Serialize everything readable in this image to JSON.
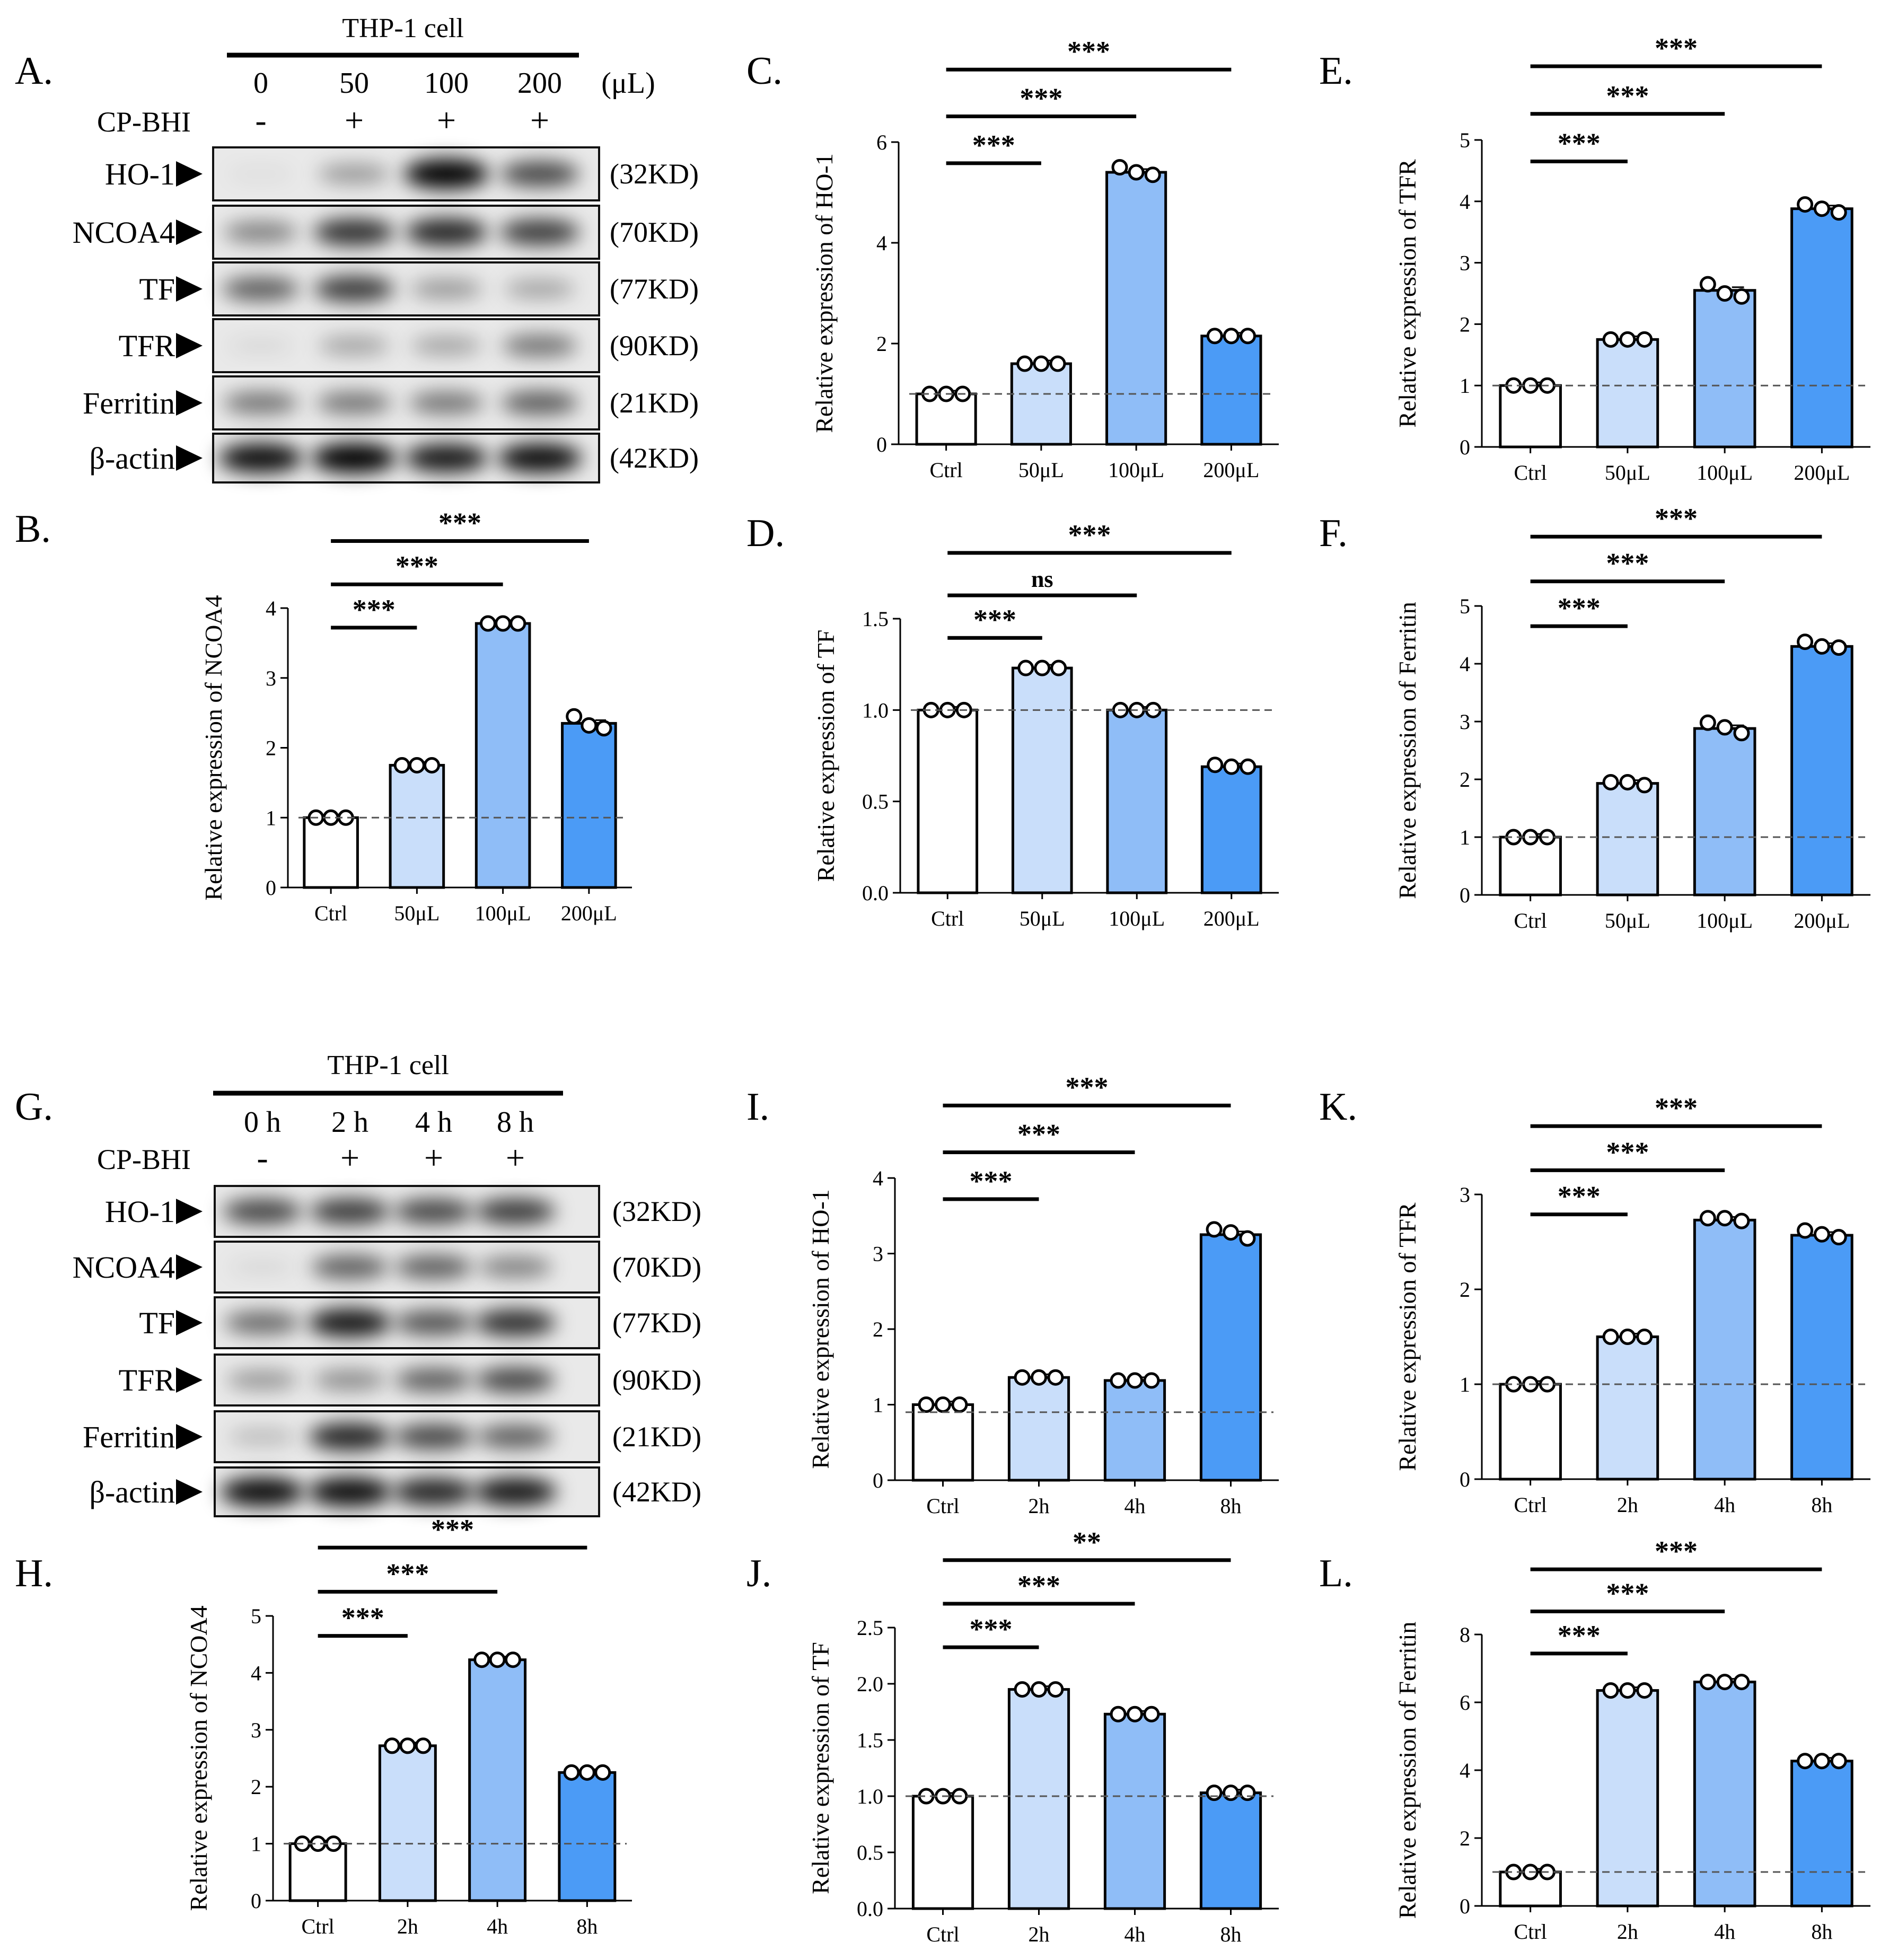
{
  "colors": {
    "ctrl": "#ffffff",
    "low": "#c9defa",
    "mid": "#8fbdf7",
    "high": "#4b9bf6",
    "axis": "#000000",
    "dashed": "#555555"
  },
  "blots": [
    {
      "panel_label": "A.",
      "title": "THP-1 cell",
      "conditions": [
        "0",
        "50",
        "100",
        "200"
      ],
      "unit": "(μL)",
      "treatment_label": "CP-BHI",
      "treatment_signs": [
        "-",
        "+",
        "+",
        "+"
      ],
      "rows": [
        {
          "label": "HO-1",
          "weight": "(32KD)"
        },
        {
          "label": "NCOA4",
          "weight": "(70KD)"
        },
        {
          "label": "TF",
          "weight": "(77KD)"
        },
        {
          "label": "TFR",
          "weight": "(90KD)"
        },
        {
          "label": "Ferritin",
          "weight": "(21KD)"
        },
        {
          "label": "β-actin",
          "weight": "(42KD)"
        }
      ],
      "intensity": [
        [
          0.05,
          0.35,
          1.0,
          0.7
        ],
        [
          0.45,
          0.8,
          0.85,
          0.75
        ],
        [
          0.6,
          0.75,
          0.35,
          0.3
        ],
        [
          0.08,
          0.3,
          0.3,
          0.5
        ],
        [
          0.5,
          0.5,
          0.5,
          0.6
        ],
        [
          0.95,
          1.0,
          0.9,
          0.95
        ]
      ]
    },
    {
      "panel_label": "G.",
      "title": "THP-1 cell",
      "conditions": [
        "0 h",
        "2 h",
        "4 h",
        "8 h"
      ],
      "unit": "",
      "treatment_label": "CP-BHI",
      "treatment_signs": [
        "-",
        "+",
        "+",
        "+"
      ],
      "rows": [
        {
          "label": "HO-1",
          "weight": "(32KD)"
        },
        {
          "label": "NCOA4",
          "weight": "(70KD)"
        },
        {
          "label": "TF",
          "weight": "(77KD)"
        },
        {
          "label": "TFR",
          "weight": "(90KD)"
        },
        {
          "label": "Ferritin",
          "weight": "(21KD)"
        },
        {
          "label": "β-actin",
          "weight": "(42KD)"
        }
      ],
      "intensity": [
        [
          0.7,
          0.75,
          0.7,
          0.75
        ],
        [
          0.08,
          0.6,
          0.6,
          0.45
        ],
        [
          0.55,
          0.9,
          0.65,
          0.8
        ],
        [
          0.35,
          0.4,
          0.6,
          0.7
        ],
        [
          0.2,
          0.85,
          0.7,
          0.6
        ],
        [
          0.95,
          0.95,
          0.85,
          0.9
        ]
      ]
    }
  ],
  "chart_data": [
    {
      "panel_label": "B.",
      "type": "bar",
      "ylabel": "Relative expression of NCOA4",
      "categories": [
        "Ctrl",
        "50μL",
        "100μL",
        "200μL"
      ],
      "values": [
        1.0,
        1.75,
        3.78,
        2.35
      ],
      "points": [
        [
          1,
          1,
          1
        ],
        [
          1.75,
          1.75,
          1.75
        ],
        [
          3.78,
          3.78,
          3.78
        ],
        [
          2.45,
          2.32,
          2.28
        ]
      ],
      "ylim": [
        0,
        4
      ],
      "yticks": [
        "0",
        "1",
        "2",
        "3",
        "4"
      ],
      "reference": 1.0,
      "sig": [
        {
          "to": 1,
          "label": "***"
        },
        {
          "to": 2,
          "label": "***"
        },
        {
          "to": 3,
          "label": "***"
        }
      ]
    },
    {
      "panel_label": "C.",
      "type": "bar",
      "ylabel": "Relative expression of HO-1",
      "categories": [
        "Ctrl",
        "50μL",
        "100μL",
        "200μL"
      ],
      "values": [
        1.0,
        1.6,
        5.4,
        2.15
      ],
      "points": [
        [
          1,
          1,
          1
        ],
        [
          1.6,
          1.6,
          1.6
        ],
        [
          5.5,
          5.4,
          5.35
        ],
        [
          2.15,
          2.15,
          2.15
        ]
      ],
      "ylim": [
        0,
        6
      ],
      "yticks": [
        "0",
        "2",
        "4",
        "6"
      ],
      "reference": 1.0,
      "sig": [
        {
          "to": 1,
          "label": "***"
        },
        {
          "to": 2,
          "label": "***"
        },
        {
          "to": 3,
          "label": "***"
        }
      ]
    },
    {
      "panel_label": "D.",
      "type": "bar",
      "ylabel": "Relative expression of TF",
      "categories": [
        "Ctrl",
        "50μL",
        "100μL",
        "200μL"
      ],
      "values": [
        1.0,
        1.23,
        1.0,
        0.69
      ],
      "points": [
        [
          1,
          1,
          1
        ],
        [
          1.23,
          1.23,
          1.23
        ],
        [
          1.0,
          1.0,
          1.0
        ],
        [
          0.7,
          0.69,
          0.69
        ]
      ],
      "ylim": [
        0,
        1.5
      ],
      "yticks": [
        "0.0",
        "0.5",
        "1.0",
        "1.5"
      ],
      "reference": 1.0,
      "sig": [
        {
          "to": 1,
          "label": "***"
        },
        {
          "to": 2,
          "label": "ns"
        },
        {
          "to": 3,
          "label": "***"
        }
      ]
    },
    {
      "panel_label": "E.",
      "type": "bar",
      "ylabel": "Relative expression of TFR",
      "categories": [
        "Ctrl",
        "50μL",
        "100μL",
        "200μL"
      ],
      "values": [
        1.0,
        1.75,
        2.55,
        3.88
      ],
      "points": [
        [
          1,
          1,
          1
        ],
        [
          1.75,
          1.75,
          1.75
        ],
        [
          2.65,
          2.5,
          2.45
        ],
        [
          3.95,
          3.88,
          3.82
        ]
      ],
      "ylim": [
        0,
        5
      ],
      "yticks": [
        "0",
        "1",
        "2",
        "3",
        "4",
        "5"
      ],
      "reference": 1.0,
      "sig": [
        {
          "to": 1,
          "label": "***"
        },
        {
          "to": 2,
          "label": "***"
        },
        {
          "to": 3,
          "label": "***"
        }
      ]
    },
    {
      "panel_label": "F.",
      "type": "bar",
      "ylabel": "Relative expression of Ferritin",
      "categories": [
        "Ctrl",
        "50μL",
        "100μL",
        "200μL"
      ],
      "values": [
        1.0,
        1.93,
        2.88,
        4.3
      ],
      "points": [
        [
          1,
          1,
          1
        ],
        [
          1.95,
          1.95,
          1.9
        ],
        [
          2.98,
          2.9,
          2.8
        ],
        [
          4.38,
          4.3,
          4.28
        ]
      ],
      "ylim": [
        0,
        5
      ],
      "yticks": [
        "0",
        "1",
        "2",
        "3",
        "4",
        "5"
      ],
      "reference": 1.0,
      "sig": [
        {
          "to": 1,
          "label": "***"
        },
        {
          "to": 2,
          "label": "***"
        },
        {
          "to": 3,
          "label": "***"
        }
      ]
    },
    {
      "panel_label": "H.",
      "type": "bar",
      "ylabel": "Relative expression of NCOA4",
      "categories": [
        "Ctrl",
        "2h",
        "4h",
        "8h"
      ],
      "values": [
        1.0,
        2.72,
        4.23,
        2.25
      ],
      "points": [
        [
          1,
          1,
          1
        ],
        [
          2.72,
          2.72,
          2.72
        ],
        [
          4.23,
          4.23,
          4.23
        ],
        [
          2.25,
          2.25,
          2.25
        ]
      ],
      "ylim": [
        0,
        5
      ],
      "yticks": [
        "0",
        "1",
        "2",
        "3",
        "4",
        "5"
      ],
      "reference": 1.0,
      "sig": [
        {
          "to": 1,
          "label": "***"
        },
        {
          "to": 2,
          "label": "***"
        },
        {
          "to": 3,
          "label": "***"
        }
      ]
    },
    {
      "panel_label": "I.",
      "type": "bar",
      "ylabel": "Relative expression of HO-1",
      "categories": [
        "Ctrl",
        "2h",
        "4h",
        "8h"
      ],
      "values": [
        1.0,
        1.36,
        1.32,
        3.25
      ],
      "points": [
        [
          1,
          1,
          1
        ],
        [
          1.36,
          1.36,
          1.36
        ],
        [
          1.32,
          1.32,
          1.32
        ],
        [
          3.32,
          3.28,
          3.2
        ]
      ],
      "ylim": [
        0,
        4
      ],
      "yticks": [
        "0",
        "1",
        "2",
        "3",
        "4"
      ],
      "reference": 0.9,
      "sig": [
        {
          "to": 1,
          "label": "***"
        },
        {
          "to": 2,
          "label": "***"
        },
        {
          "to": 3,
          "label": "***"
        }
      ]
    },
    {
      "panel_label": "J.",
      "type": "bar",
      "ylabel": "Relative expression of TF",
      "categories": [
        "Ctrl",
        "2h",
        "4h",
        "8h"
      ],
      "values": [
        1.0,
        1.95,
        1.73,
        1.03
      ],
      "points": [
        [
          1,
          1,
          1
        ],
        [
          1.95,
          1.95,
          1.95
        ],
        [
          1.73,
          1.73,
          1.73
        ],
        [
          1.03,
          1.03,
          1.03
        ]
      ],
      "ylim": [
        0,
        2.5
      ],
      "yticks": [
        "0.0",
        "0.5",
        "1.0",
        "1.5",
        "2.0",
        "2.5"
      ],
      "reference": 1.0,
      "sig": [
        {
          "to": 1,
          "label": "***"
        },
        {
          "to": 2,
          "label": "***"
        },
        {
          "to": 3,
          "label": "**"
        }
      ]
    },
    {
      "panel_label": "K.",
      "type": "bar",
      "ylabel": "Relative expression of TFR",
      "categories": [
        "Ctrl",
        "2h",
        "4h",
        "8h"
      ],
      "values": [
        1.0,
        1.5,
        2.73,
        2.57
      ],
      "points": [
        [
          1,
          1,
          1
        ],
        [
          1.5,
          1.5,
          1.5
        ],
        [
          2.75,
          2.75,
          2.72
        ],
        [
          2.62,
          2.58,
          2.55
        ]
      ],
      "ylim": [
        0,
        3
      ],
      "yticks": [
        "0",
        "1",
        "2",
        "3"
      ],
      "reference": 1.0,
      "sig": [
        {
          "to": 1,
          "label": "***"
        },
        {
          "to": 2,
          "label": "***"
        },
        {
          "to": 3,
          "label": "***"
        }
      ]
    },
    {
      "panel_label": "L.",
      "type": "bar",
      "ylabel": "Relative expression of Ferritin",
      "categories": [
        "Ctrl",
        "2h",
        "4h",
        "8h"
      ],
      "values": [
        1.0,
        6.35,
        6.6,
        4.27
      ],
      "points": [
        [
          1,
          1,
          1
        ],
        [
          6.35,
          6.35,
          6.35
        ],
        [
          6.6,
          6.6,
          6.6
        ],
        [
          4.27,
          4.27,
          4.27
        ]
      ],
      "ylim": [
        0,
        8
      ],
      "yticks": [
        "0",
        "2",
        "4",
        "6",
        "8"
      ],
      "reference": 1.0,
      "sig": [
        {
          "to": 1,
          "label": "***"
        },
        {
          "to": 2,
          "label": "***"
        },
        {
          "to": 3,
          "label": "***"
        }
      ]
    }
  ]
}
